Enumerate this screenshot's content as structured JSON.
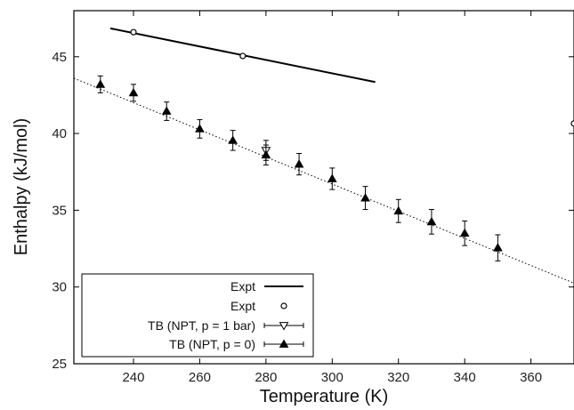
{
  "chart_data": {
    "type": "scatter",
    "title": "",
    "xlabel": "Temperature (K)",
    "ylabel": "Enthalpy (kJ/mol)",
    "xlim": [
      222,
      373
    ],
    "ylim": [
      25,
      48
    ],
    "x_ticks": [
      240,
      260,
      280,
      300,
      320,
      340,
      360
    ],
    "y_ticks": [
      25,
      30,
      35,
      40,
      45
    ],
    "grid": false,
    "legend_position": "bottom-left",
    "legend": [
      "Expt",
      "Expt",
      "TB (NPT, p = 1 bar)",
      "TB (NPT, p = 0)"
    ],
    "series": [
      {
        "name": "Expt",
        "style": "solid-line",
        "x": [
          233,
          313
        ],
        "y": [
          46.85,
          43.35
        ]
      },
      {
        "name": "Expt",
        "style": "open-circle",
        "x": [
          240,
          273,
          373
        ],
        "y": [
          46.6,
          45.05,
          40.65
        ]
      },
      {
        "name": "TB (NPT, p = 1 bar)",
        "style": "open-down-triangle-errorbar",
        "x": [
          280
        ],
        "y": [
          38.9
        ],
        "err": [
          0.65
        ]
      },
      {
        "name": "TB (NPT, p = 0)",
        "style": "filled-up-triangle-errorbar",
        "x": [
          230,
          240,
          250,
          260,
          270,
          280,
          290,
          300,
          310,
          320,
          330,
          340,
          350
        ],
        "y": [
          43.2,
          42.65,
          41.45,
          40.3,
          39.55,
          38.6,
          38.0,
          37.05,
          35.8,
          34.95,
          34.25,
          33.5,
          32.55
        ],
        "err": [
          0.55,
          0.55,
          0.6,
          0.6,
          0.65,
          0.65,
          0.7,
          0.7,
          0.75,
          0.75,
          0.8,
          0.8,
          0.85
        ]
      },
      {
        "name": "",
        "style": "dotted-fit",
        "x": [
          222,
          373
        ],
        "y": [
          43.6,
          30.25
        ]
      }
    ]
  }
}
